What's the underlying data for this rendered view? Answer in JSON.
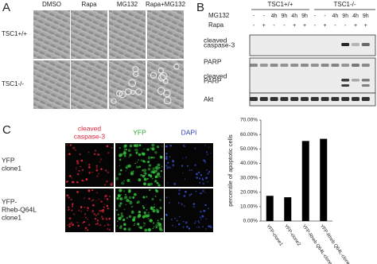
{
  "panel_a": {
    "label": "A",
    "columns": [
      "DMSO",
      "Rapa",
      "MG132",
      "Rapa+MG132"
    ],
    "rows": [
      "TSC1+/+",
      "TSC1-/-"
    ]
  },
  "panel_b": {
    "label": "B",
    "groups": [
      "TSC1+/+",
      "TSC1-/-"
    ],
    "rows": [
      {
        "name": "MG132",
        "lanes": [
          "-",
          "-",
          "4h",
          "9h",
          "4h",
          "9h",
          "-",
          "-",
          "4h",
          "9h",
          "4h",
          "9h"
        ]
      },
      {
        "name": "Rapa",
        "lanes": [
          "-",
          "+",
          "-",
          "-",
          "+",
          "+",
          "-",
          "+",
          "-",
          "-",
          "+",
          "+"
        ]
      }
    ],
    "blots": [
      [
        "cleaved",
        "caspase-3"
      ],
      [
        "PARP"
      ],
      [
        "cleaved",
        "PARP"
      ],
      [
        "Akt"
      ]
    ]
  },
  "panel_c": {
    "label": "C",
    "columns": [
      [
        "cleaved",
        "caspase-3"
      ],
      [
        "YFP"
      ],
      [
        "DAPI"
      ]
    ],
    "rows": [
      [
        "YFP",
        "clone1"
      ],
      [
        "YFP-",
        "Rheb-Q64L",
        "clone1"
      ]
    ]
  },
  "chart_data": {
    "type": "bar",
    "y_label": "percentile of apoptotic cells",
    "categories": [
      "YFP-clone1",
      "YFP-clone2",
      "YFP-Rheb Q64L-clone1",
      "YFP-Rheb Q64L-clone2"
    ],
    "values": [
      17.5,
      16.5,
      55.5,
      57
    ],
    "color": "#000000",
    "ylim": [
      0,
      70
    ],
    "yticks": [
      {
        "value": 0,
        "label": "0.00%"
      },
      {
        "value": 10,
        "label": "10.00%"
      },
      {
        "value": 20,
        "label": "20.00%"
      },
      {
        "value": 30,
        "label": "30.00%"
      },
      {
        "value": 40,
        "label": "40.00%"
      },
      {
        "value": 50,
        "label": "50.00%"
      },
      {
        "value": 60,
        "label": "60.00%"
      },
      {
        "value": 70,
        "label": "70.00%"
      }
    ]
  }
}
